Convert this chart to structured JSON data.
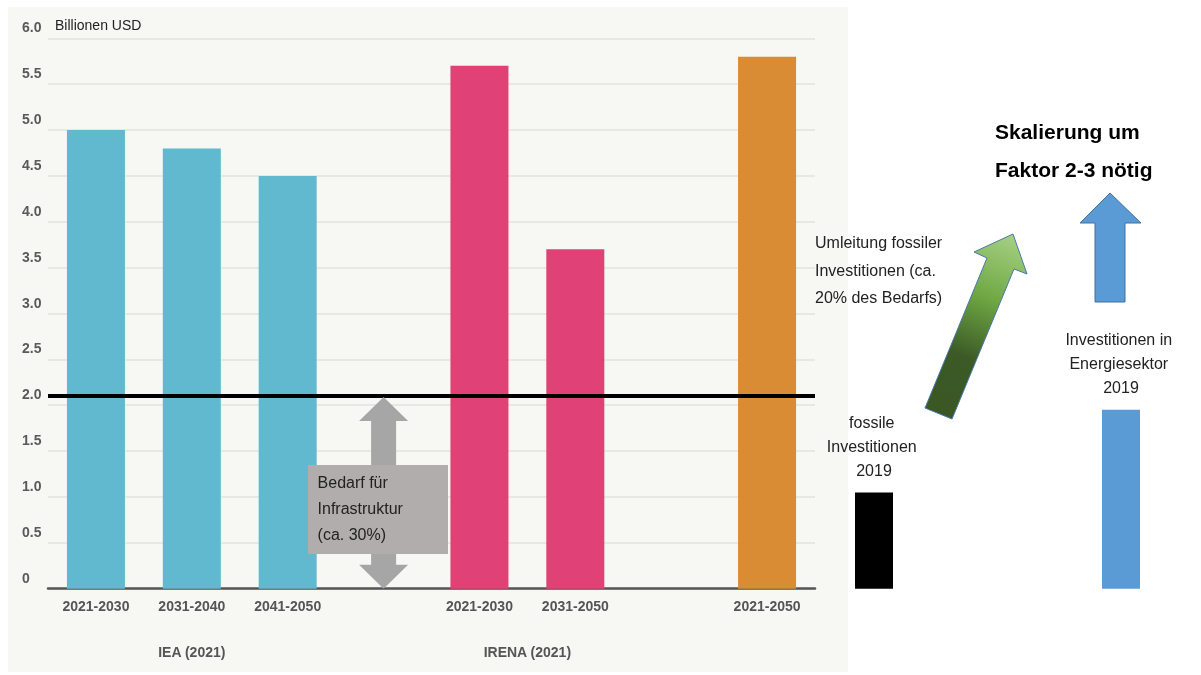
{
  "chart_data": [
    {
      "type": "bar",
      "ylabel": "Billionen USD",
      "categories": [
        "2021-2030",
        "2031-2040",
        "2041-2050",
        null,
        "2021-2030",
        "2031-2050",
        null,
        "2021-2050"
      ],
      "values": [
        5,
        4.8,
        4.5,
        null,
        5.7,
        3.7,
        null,
        5.8
      ],
      "colors": [
        "#60b9ce",
        "#60b9ce",
        "#60b9ce",
        null,
        "#e04177",
        "#e04177",
        null,
        "#d98c33"
      ],
      "ylim": [
        0,
        6
      ],
      "yticks": [
        0,
        0.5,
        {
          "value": 1,
          "label": "1.0"
        },
        1.5,
        {
          "value": 2,
          "label": "2.0"
        },
        2.5,
        {
          "value": 3,
          "label": "3.0"
        },
        3.5,
        {
          "value": 4,
          "label": "4.0"
        },
        4.5,
        {
          "value": 5,
          "label": "5.0"
        },
        5.5,
        {
          "value": 6,
          "label": "6.0"
        }
      ],
      "grid": "y",
      "ref_lines": [
        {
          "axis": "y",
          "value": 2.1,
          "color": "#000000"
        }
      ],
      "annotations": [
        "IEA (2021)",
        "IRENA (2021)",
        "Bedarf für Infrastruktur (ca. 30%)"
      ]
    },
    {
      "type": "bar",
      "categories": [
        "fossile Investitionen 2019",
        "Investitionen in Energiesektor 2019"
      ],
      "values": [
        1.05,
        1.95
      ],
      "colors": [
        "#000000",
        "#5b9bd5"
      ],
      "ylim": [
        0,
        6
      ],
      "tick_labels": "x",
      "annotations": [
        "Umleitung fossiler Investitionen (ca. 20% des Bedarfs)",
        "Skalierung um Faktor 2-3 nötig"
      ]
    }
  ]
}
